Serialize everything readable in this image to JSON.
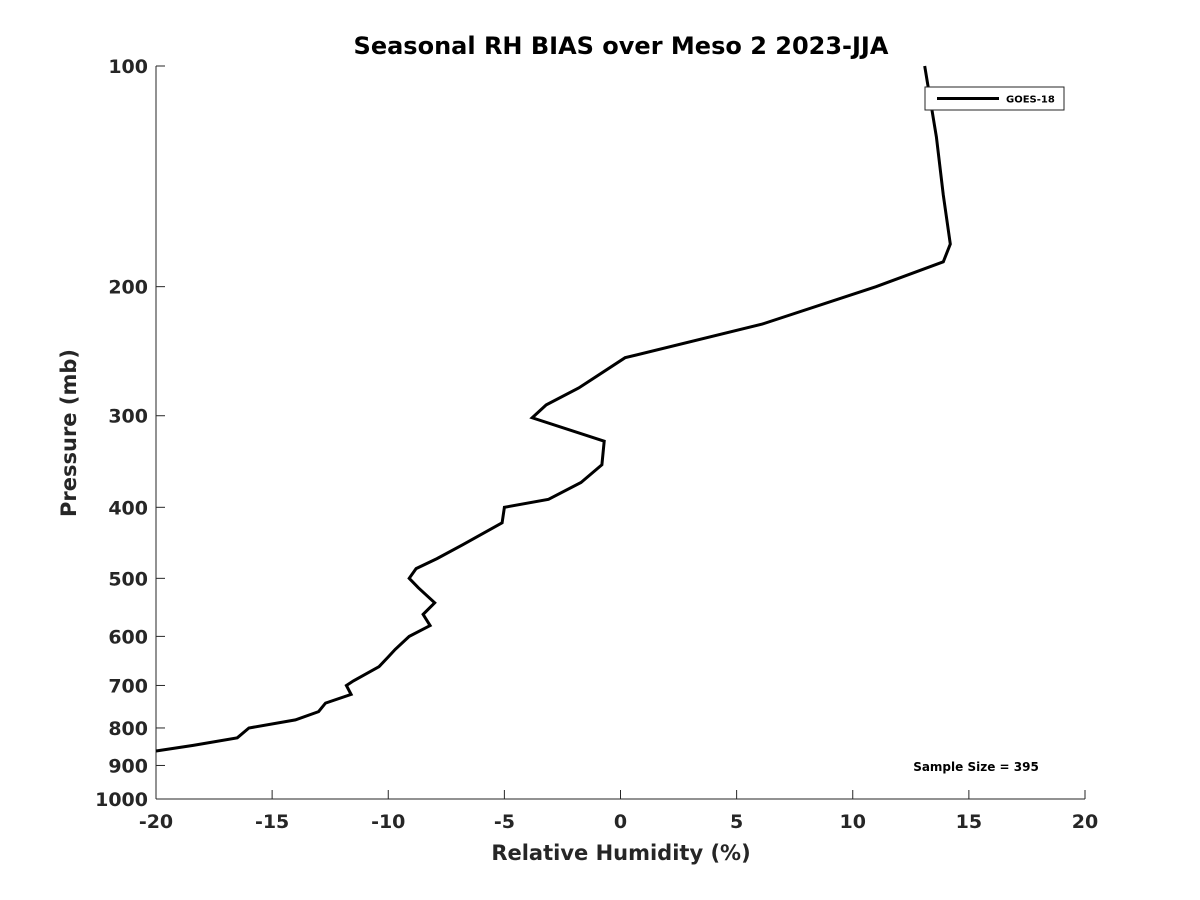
{
  "chart_data": {
    "type": "line",
    "title": "Seasonal RH BIAS over Meso 2  2023-JJA",
    "xlabel": "Relative Humidity (%)",
    "ylabel": "Pressure (mb)",
    "xlim": [
      -20,
      20
    ],
    "ylim": [
      100,
      1000
    ],
    "y_scale": "log",
    "y_reversed": true,
    "grid": false,
    "x_ticks": [
      -20,
      -15,
      -10,
      -5,
      0,
      5,
      10,
      15,
      20
    ],
    "x_tick_labels": [
      "-20",
      "-15",
      "-10",
      "-5",
      "0",
      "5",
      "10",
      "15",
      "20"
    ],
    "y_ticks": [
      100,
      200,
      300,
      400,
      500,
      600,
      700,
      800,
      900,
      1000
    ],
    "y_tick_labels": [
      "100",
      "200",
      "300",
      "400",
      "500",
      "600",
      "700",
      "800",
      "900",
      "1000"
    ],
    "legend": {
      "placement": "top-right",
      "entries": [
        "GOES-18"
      ]
    },
    "annotations": [
      "Sample Size = 395"
    ],
    "series": [
      {
        "name": "GOES-18",
        "color": "#000000",
        "points": [
          [
            13.1,
            100
          ],
          [
            13.6,
            125
          ],
          [
            13.9,
            150
          ],
          [
            14.2,
            175
          ],
          [
            13.9,
            185
          ],
          [
            11.0,
            200
          ],
          [
            6.1,
            225
          ],
          [
            0.2,
            250
          ],
          [
            -1.8,
            275
          ],
          [
            -3.2,
            290
          ],
          [
            -3.8,
            302
          ],
          [
            -0.7,
            325
          ],
          [
            -0.8,
            350
          ],
          [
            -1.7,
            370
          ],
          [
            -3.1,
            390
          ],
          [
            -5.0,
            400
          ],
          [
            -5.1,
            420
          ],
          [
            -6.8,
            450
          ],
          [
            -7.9,
            470
          ],
          [
            -8.8,
            485
          ],
          [
            -9.1,
            500
          ],
          [
            -8.7,
            515
          ],
          [
            -8.0,
            540
          ],
          [
            -8.5,
            560
          ],
          [
            -8.2,
            580
          ],
          [
            -9.1,
            600
          ],
          [
            -9.7,
            625
          ],
          [
            -10.0,
            640
          ],
          [
            -10.4,
            660
          ],
          [
            -11.5,
            690
          ],
          [
            -11.8,
            700
          ],
          [
            -11.6,
            720
          ],
          [
            -12.7,
            740
          ],
          [
            -13.0,
            760
          ],
          [
            -14.0,
            780
          ],
          [
            -16.0,
            800
          ],
          [
            -16.5,
            825
          ],
          [
            -18.4,
            845
          ],
          [
            -20.0,
            860
          ]
        ]
      }
    ]
  }
}
